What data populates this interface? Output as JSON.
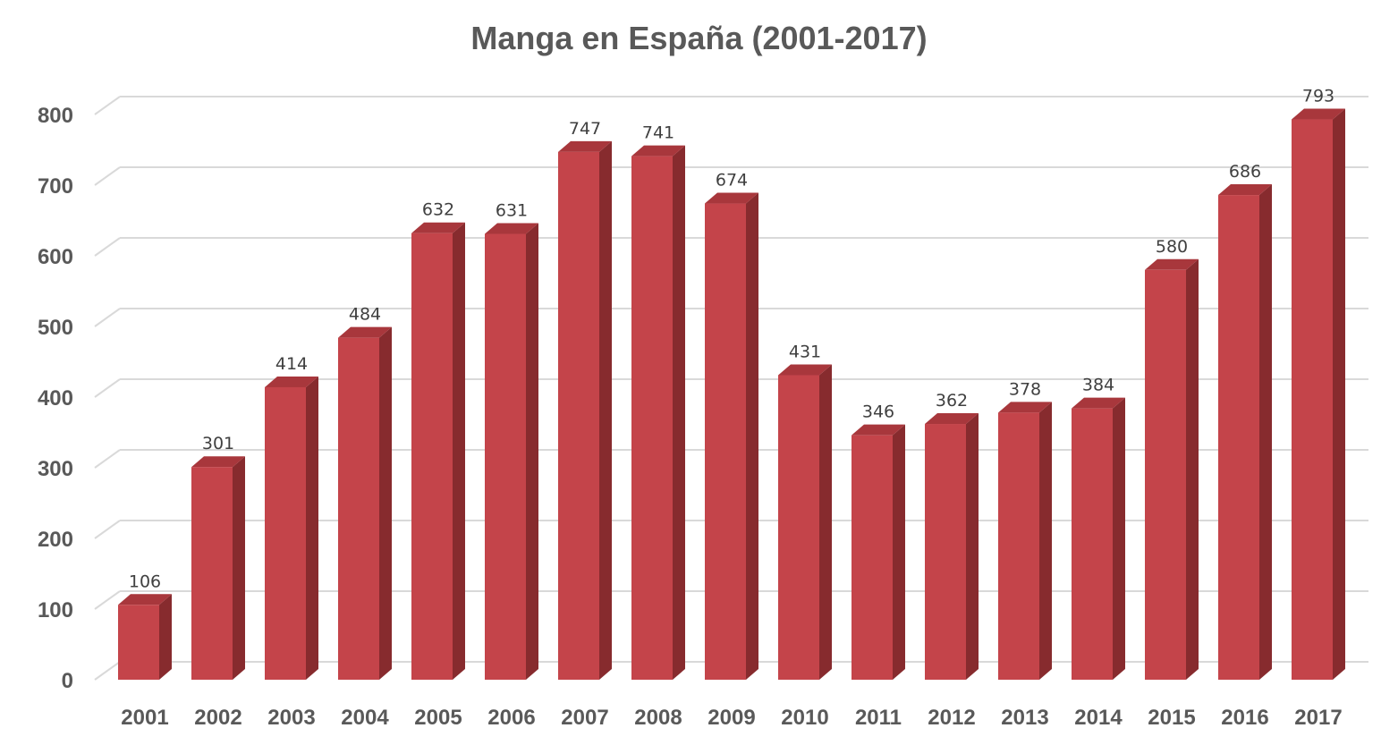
{
  "chart_data": {
    "type": "bar",
    "title": "Manga en España (2001-2017)",
    "xlabel": "",
    "ylabel": "",
    "categories": [
      "2001",
      "2002",
      "2003",
      "2004",
      "2005",
      "2006",
      "2007",
      "2008",
      "2009",
      "2010",
      "2011",
      "2012",
      "2013",
      "2014",
      "2015",
      "2016",
      "2017"
    ],
    "values": [
      106,
      301,
      414,
      484,
      632,
      631,
      747,
      741,
      674,
      431,
      346,
      362,
      378,
      384,
      580,
      686,
      793
    ],
    "ylim": [
      0,
      800
    ],
    "yticks": [
      0,
      100,
      200,
      300,
      400,
      500,
      600,
      700,
      800
    ],
    "grid": true,
    "legend": "none",
    "data_labels": true,
    "style": "3d-column"
  },
  "colors": {
    "bar_front": "#c4444a",
    "bar_side": "#872b2e",
    "bar_top": "#a8373c",
    "gridline": "#d9d9d9",
    "text": "#595959",
    "data_label": "#404040"
  }
}
